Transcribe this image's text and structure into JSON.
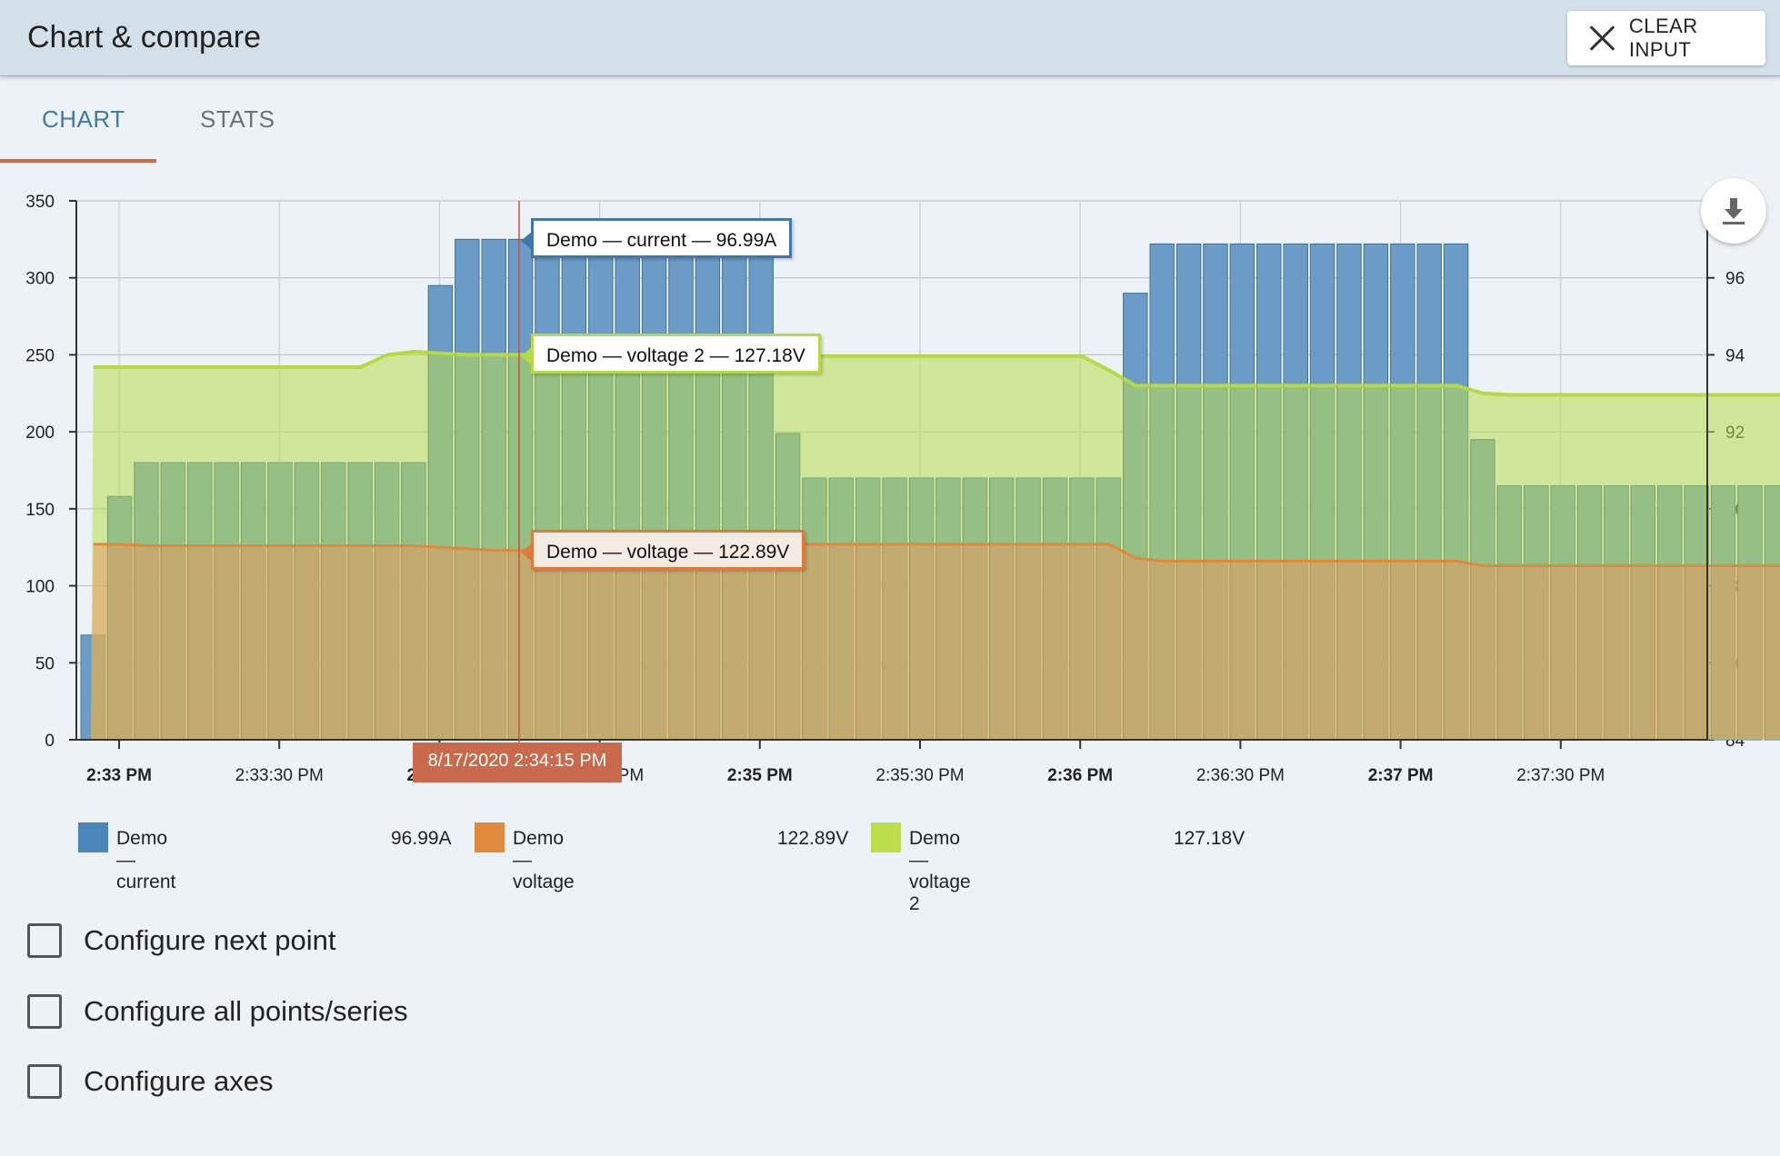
{
  "header": {
    "title": "Chart & compare",
    "clear_label": "CLEAR INPUT"
  },
  "tabs": [
    {
      "label": "CHART",
      "active": true
    },
    {
      "label": "STATS",
      "active": false
    }
  ],
  "colors": {
    "current": "#4a86b8",
    "voltage": "#e08a4a",
    "voltage2": "#b8dc4c",
    "accent": "#d2694a"
  },
  "chart_data": {
    "type": "bar",
    "left_axis": {
      "min": 0,
      "max": 350,
      "ticks": [
        "0",
        "50",
        "100",
        "150",
        "200",
        "250",
        "300",
        "350"
      ]
    },
    "right_axis": {
      "min": 84,
      "max": 98,
      "ticks": [
        "84",
        "86",
        "88",
        "90",
        "92",
        "94",
        "96"
      ]
    },
    "x_ticks": [
      {
        "label": "2:33 PM",
        "bold": true
      },
      {
        "label": "2:33:30 PM",
        "bold": false
      },
      {
        "label": "2:34 PM",
        "bold": true
      },
      {
        "label": "2:34:30 PM",
        "bold": false
      },
      {
        "label": "2:35 PM",
        "bold": true
      },
      {
        "label": "2:35:30 PM",
        "bold": false
      },
      {
        "label": "2:36 PM",
        "bold": true
      },
      {
        "label": "2:36:30 PM",
        "bold": false
      },
      {
        "label": "2:37 PM",
        "bold": true
      },
      {
        "label": "2:37:30 PM",
        "bold": false
      }
    ],
    "series": [
      {
        "name": "Demo — current",
        "kind": "bar",
        "values": [
          68,
          158,
          180,
          180,
          180,
          180,
          180,
          180,
          180,
          180,
          180,
          180,
          180,
          295,
          325,
          325,
          325,
          325,
          325,
          325,
          325,
          325,
          325,
          325,
          325,
          325,
          199,
          170,
          170,
          170,
          170,
          170,
          170,
          170,
          170,
          170,
          170,
          170,
          170,
          290,
          322,
          322,
          322,
          322,
          322,
          322,
          322,
          322,
          322,
          322,
          322,
          322,
          195,
          165,
          165,
          165,
          165,
          165,
          165,
          165,
          165,
          165,
          165,
          165,
          165,
          165,
          165
        ]
      },
      {
        "name": "Demo — voltage",
        "kind": "area",
        "values": [
          127,
          127,
          126,
          126,
          126,
          126,
          126,
          126,
          126,
          126,
          126,
          126,
          126,
          125,
          124,
          123,
          123,
          123,
          123,
          127,
          127,
          127,
          127,
          127,
          127,
          127,
          127,
          127,
          127,
          127,
          127,
          127,
          127,
          127,
          127,
          127,
          127,
          127,
          127,
          118,
          116,
          116,
          116,
          116,
          116,
          116,
          116,
          116,
          116,
          116,
          116,
          116,
          113,
          113,
          113,
          113,
          113,
          113,
          113,
          113,
          113,
          113,
          113,
          113,
          113,
          113,
          113
        ]
      },
      {
        "name": "Demo — voltage 2",
        "kind": "area",
        "values": [
          242,
          242,
          242,
          242,
          242,
          242,
          242,
          242,
          242,
          242,
          242,
          250,
          252,
          251,
          250,
          250,
          250,
          250,
          250,
          249,
          249,
          249,
          249,
          249,
          249,
          249,
          249,
          249,
          249,
          249,
          249,
          249,
          249,
          249,
          249,
          249,
          249,
          249,
          240,
          230,
          230,
          230,
          230,
          230,
          230,
          230,
          230,
          230,
          230,
          230,
          230,
          230,
          225,
          224,
          224,
          224,
          224,
          224,
          224,
          224,
          224,
          224,
          224,
          224,
          224,
          224,
          224
        ]
      }
    ],
    "hover_time": "8/17/2020 2:34:15 PM"
  },
  "tooltips": {
    "current": "Demo — current — 96.99A",
    "voltage2": "Demo — voltage 2 — 127.18V",
    "voltage": "Demo — voltage — 122.89V"
  },
  "legend": [
    {
      "name": "Demo — current",
      "value": "96.99A"
    },
    {
      "name": "Demo — voltage",
      "value": "122.89V"
    },
    {
      "name": "Demo — voltage 2",
      "value": "127.18V"
    }
  ],
  "config": [
    {
      "label": "Configure next point"
    },
    {
      "label": "Configure all points/series"
    },
    {
      "label": "Configure axes"
    }
  ]
}
